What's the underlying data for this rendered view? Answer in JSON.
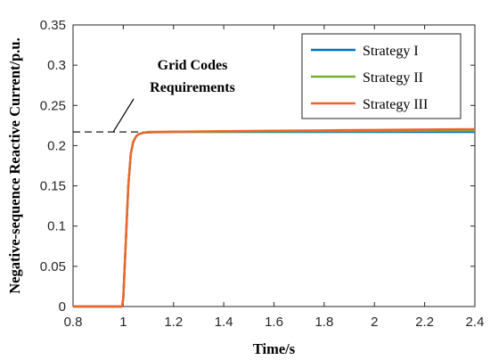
{
  "chart_data": {
    "type": "line",
    "title": "",
    "xlabel": "Time/s",
    "ylabel": "Negative-sequence Reactive Current/p.u.",
    "xlim": [
      0.8,
      2.4
    ],
    "ylim": [
      0,
      0.35
    ],
    "xticks": [
      "0.8",
      "1",
      "1.2",
      "1.4",
      "1.6",
      "1.8",
      "2",
      "2.2",
      "2.4"
    ],
    "yticks": [
      "0",
      "0.05",
      "0.1",
      "0.15",
      "0.2",
      "0.25",
      "0.3",
      "0.35"
    ],
    "grid": false,
    "legend_position": "top-right",
    "series": [
      {
        "name": "Strategy I",
        "color": "#0072BD",
        "x": [
          0.8,
          0.995,
          1.0,
          1.01,
          1.02,
          1.03,
          1.04,
          1.05,
          1.06,
          1.08,
          1.1,
          1.2,
          1.4,
          1.6,
          1.8,
          2.0,
          2.2,
          2.4
        ],
        "y": [
          0,
          0,
          0.01,
          0.08,
          0.15,
          0.19,
          0.205,
          0.211,
          0.214,
          0.216,
          0.2165,
          0.217,
          0.217,
          0.217,
          0.217,
          0.217,
          0.217,
          0.217
        ]
      },
      {
        "name": "Strategy II",
        "color": "#77AC30",
        "x": [
          0.8,
          0.995,
          1.0,
          1.01,
          1.02,
          1.03,
          1.04,
          1.05,
          1.06,
          1.08,
          1.1,
          1.2,
          1.4,
          1.6,
          1.8,
          2.0,
          2.2,
          2.4
        ],
        "y": [
          0,
          0,
          0.01,
          0.08,
          0.15,
          0.19,
          0.205,
          0.211,
          0.214,
          0.216,
          0.2168,
          0.2172,
          0.2175,
          0.2178,
          0.218,
          0.2182,
          0.2184,
          0.2186
        ]
      },
      {
        "name": "Strategy III",
        "color": "#F0642A",
        "x": [
          0.8,
          0.995,
          1.0,
          1.01,
          1.02,
          1.03,
          1.04,
          1.05,
          1.06,
          1.08,
          1.1,
          1.2,
          1.4,
          1.6,
          1.8,
          2.0,
          2.2,
          2.4
        ],
        "y": [
          0,
          0,
          0.01,
          0.08,
          0.15,
          0.19,
          0.205,
          0.211,
          0.214,
          0.216,
          0.217,
          0.2173,
          0.218,
          0.2185,
          0.219,
          0.2195,
          0.22,
          0.2205
        ]
      }
    ],
    "reference_line": {
      "y": 0.217,
      "style": "dashed",
      "color": "#000000"
    },
    "annotation": {
      "lines": [
        "Grid Codes",
        "Requirements"
      ],
      "x": 0.96,
      "y": 0.217
    }
  }
}
